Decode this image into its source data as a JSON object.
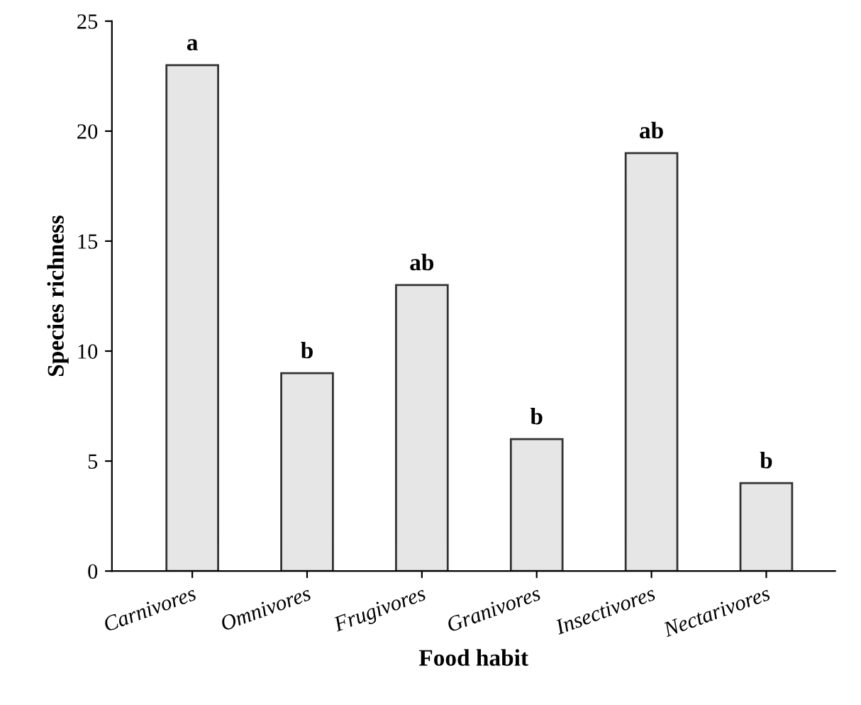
{
  "chart_data": {
    "type": "bar",
    "xlabel": "Food habit",
    "ylabel": "Species richness",
    "categories": [
      "Carnivores",
      "Omnivores",
      "Frugivores",
      "Granivores",
      "Insectivores",
      "Nectarivores"
    ],
    "values": [
      23,
      9,
      13,
      6,
      19,
      4
    ],
    "color": "#e6e6e6",
    "ylim": [
      0,
      25
    ],
    "yticks": [
      0,
      5,
      10,
      15,
      20,
      25
    ],
    "grid": false,
    "legend": false,
    "annotations": [
      {
        "text": "a",
        "x": "Carnivores",
        "y": 23
      },
      {
        "text": "b",
        "x": "Omnivores",
        "y": 9
      },
      {
        "text": "ab",
        "x": "Frugivores",
        "y": 13
      },
      {
        "text": "b",
        "x": "Granivores",
        "y": 6
      },
      {
        "text": "ab",
        "x": "Insectivores",
        "y": 19
      },
      {
        "text": "b",
        "x": "Nectarivores",
        "y": 4
      }
    ]
  }
}
